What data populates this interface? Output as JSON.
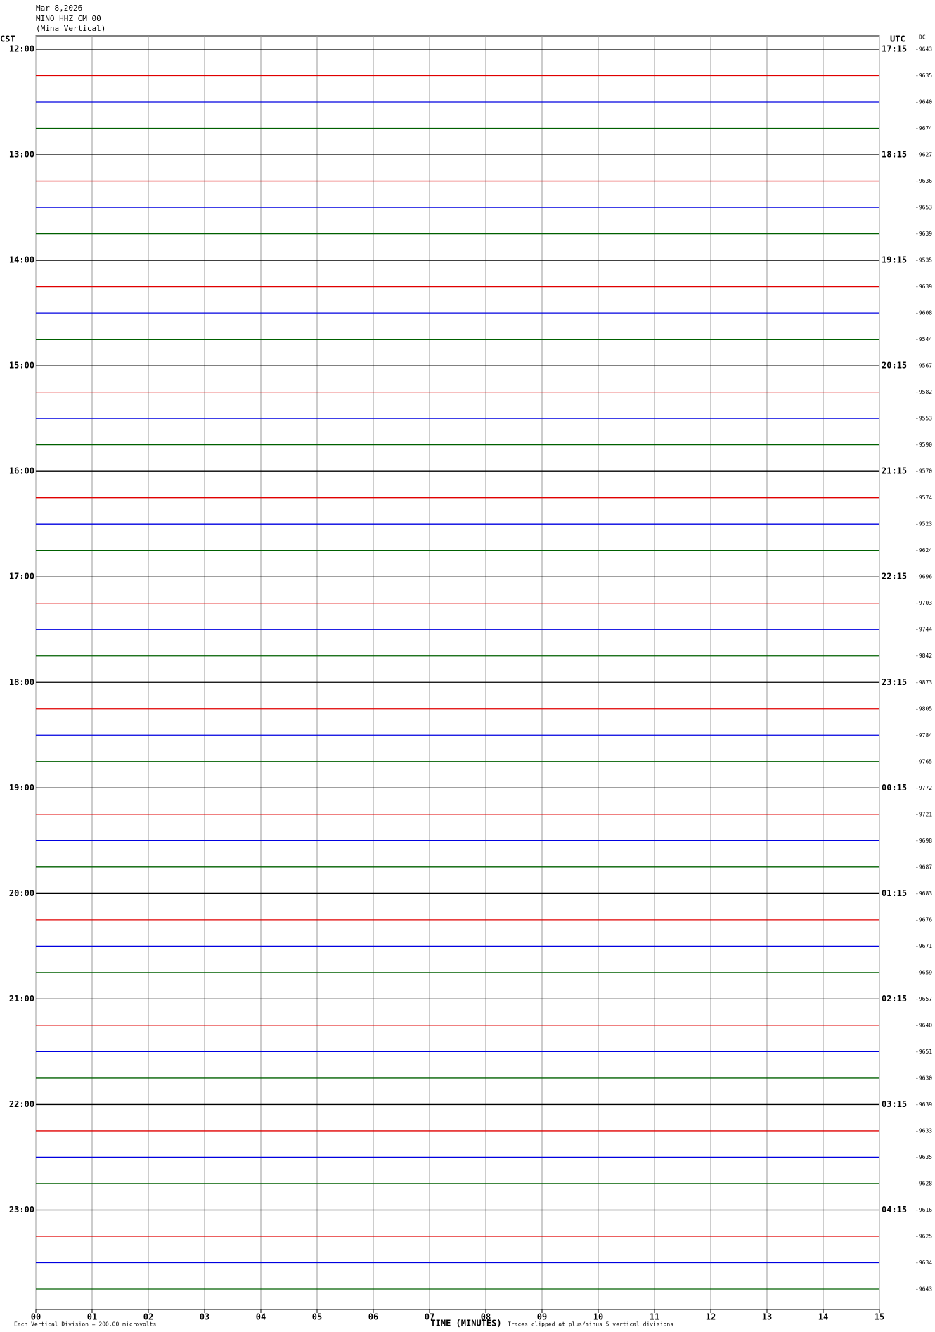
{
  "chart_data": {
    "type": "helicorder",
    "title_lines": [
      "Mar 8,2026",
      "MINO HHZ CM 00",
      "(Mina Vertical)"
    ],
    "left_axis_label": "CST",
    "right_axis_label": "UTC",
    "dc_label": "DC",
    "xlabel": "TIME (MINUTES)",
    "note_left": "Each Vertical Division = 200.00 microvolts",
    "note_right": "Traces clipped at plus/minus 5 vertical divisions",
    "xlim": [
      0,
      15
    ],
    "xticks": [
      {
        "value": 0,
        "label": "00"
      },
      {
        "value": 1,
        "label": "01"
      },
      {
        "value": 2,
        "label": "02"
      },
      {
        "value": 3,
        "label": "03"
      },
      {
        "value": 4,
        "label": "04"
      },
      {
        "value": 5,
        "label": "05"
      },
      {
        "value": 6,
        "label": "06"
      },
      {
        "value": 7,
        "label": "07"
      },
      {
        "value": 8,
        "label": "08"
      },
      {
        "value": 9,
        "label": "09"
      },
      10,
      11,
      12,
      13,
      14,
      15
    ],
    "grid": true,
    "row_colors": [
      "#000000",
      "#e00000",
      "#0000e0",
      "#006000"
    ],
    "left_labels": [
      "12:00",
      "13:00",
      "14:00",
      "15:00",
      "16:00",
      "17:00",
      "18:00",
      "19:00",
      "20:00",
      "21:00",
      "22:00",
      "23:00"
    ],
    "right_labels": [
      "17:15",
      "18:15",
      "19:15",
      "20:15",
      "21:15",
      "22:15",
      "23:15",
      "00:15",
      "01:15",
      "02:15",
      "03:15",
      "04:15"
    ],
    "dc": [
      -9643,
      -9635,
      -9640,
      -9674,
      -9627,
      -9636,
      -9653,
      -9639,
      -9535,
      -9639,
      -9608,
      -9544,
      -9567,
      -9582,
      -9553,
      -9590,
      -9570,
      -9574,
      -9523,
      -9624,
      -9696,
      -9703,
      -9744,
      -9842,
      -9873,
      -9805,
      -9784,
      -9765,
      -9772,
      -9721,
      -9698,
      -9687,
      -9683,
      -9676,
      -9671,
      -9659,
      -9657,
      -9640,
      -9651,
      -9630,
      -9639,
      -9633,
      -9635,
      -9628,
      -9616,
      -9625,
      -9634,
      -9643
    ]
  }
}
